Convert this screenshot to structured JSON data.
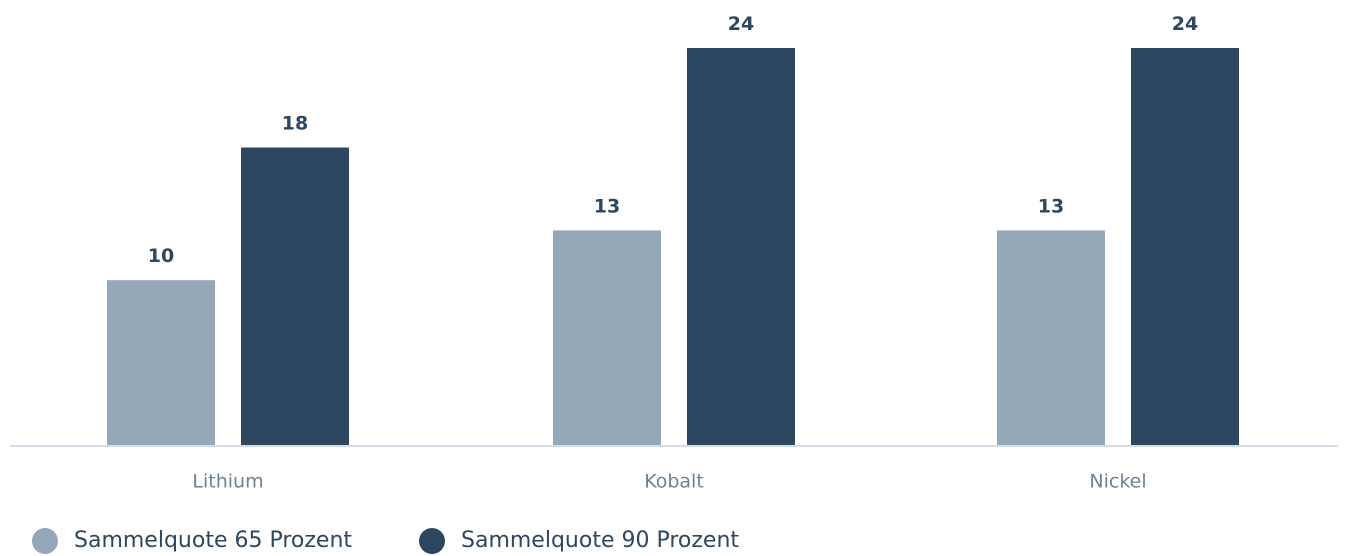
{
  "chart_data": {
    "type": "bar",
    "title": "",
    "xlabel": "",
    "ylabel": "",
    "categories": [
      "Lithium",
      "Kobalt",
      "Nickel"
    ],
    "series": [
      {
        "name": "Sammelquote 65 Prozent",
        "values": [
          10,
          13,
          13
        ],
        "color": "#94a8ba"
      },
      {
        "name": "Sammelquote 90 Prozent",
        "values": [
          18,
          24,
          24
        ],
        "color": "#2e4760"
      }
    ],
    "ylim": [
      0,
      24
    ],
    "grid": false,
    "axis_line_color": "#d3dde7",
    "data_labels": true,
    "legend": {
      "placement": "bottom-left"
    }
  }
}
